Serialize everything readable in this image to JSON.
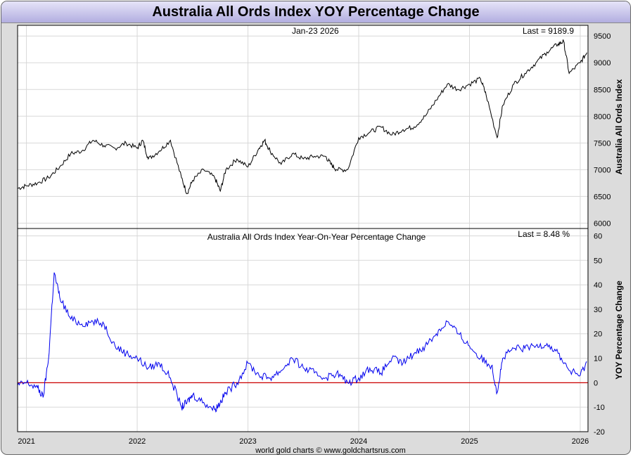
{
  "title": "Australia All Ords Index YOY Percentage Change",
  "footer": "world gold charts © www.goldchartsrus.com",
  "colors": {
    "top_series": "#000000",
    "bottom_series": "#0000ee",
    "zero_line": "#cc0000",
    "grid": "#d8d8d8"
  },
  "chart_data": [
    {
      "type": "line",
      "date_label": "Jan-23  2026",
      "last_label": "Last = 9189.9",
      "ylabel": "Australia All Ords Index",
      "ylim": [
        5900,
        9700
      ],
      "yticks": [
        6000,
        6500,
        7000,
        7500,
        8000,
        8500,
        9000,
        9500
      ],
      "xlim": [
        2020.92,
        2026.07
      ],
      "xticks": [
        "2021",
        "2022",
        "2023",
        "2024",
        "2025",
        "2026"
      ],
      "grid": true,
      "series": [
        {
          "x": [
            2020.92,
            2021.0,
            2021.1,
            2021.2,
            2021.3,
            2021.4,
            2021.5,
            2021.6,
            2021.7,
            2021.8,
            2021.9,
            2022.0,
            2022.05,
            2022.1,
            2022.2,
            2022.3,
            2022.4,
            2022.45,
            2022.5,
            2022.6,
            2022.7,
            2022.75,
            2022.8,
            2022.9,
            2023.0,
            2023.1,
            2023.15,
            2023.2,
            2023.3,
            2023.4,
            2023.5,
            2023.6,
            2023.7,
            2023.75,
            2023.8,
            2023.9,
            2024.0,
            2024.1,
            2024.2,
            2024.3,
            2024.4,
            2024.5,
            2024.6,
            2024.7,
            2024.8,
            2024.9,
            2025.0,
            2025.1,
            2025.15,
            2025.25,
            2025.3,
            2025.4,
            2025.5,
            2025.6,
            2025.7,
            2025.8,
            2025.85,
            2025.9,
            2026.0,
            2026.06
          ],
          "y": [
            6650,
            6700,
            6750,
            6850,
            7050,
            7300,
            7350,
            7550,
            7450,
            7400,
            7500,
            7400,
            7550,
            7200,
            7350,
            7550,
            6850,
            6550,
            6800,
            7000,
            6850,
            6600,
            7000,
            7200,
            7050,
            7400,
            7550,
            7350,
            7100,
            7300,
            7200,
            7250,
            7250,
            7100,
            7000,
            7000,
            7600,
            7700,
            7800,
            7650,
            7750,
            7800,
            8000,
            8300,
            8600,
            8500,
            8600,
            8700,
            8400,
            7600,
            8200,
            8600,
            8800,
            9000,
            9200,
            9350,
            9400,
            8800,
            9000,
            9190
          ]
        }
      ]
    },
    {
      "type": "line",
      "title": "Australia All Ords Index Year-On-Year Percentage Change",
      "last_label": "Last = 8.48 %",
      "ylabel": "YOY Percentage Change",
      "ylim": [
        -20,
        63
      ],
      "yticks": [
        -20,
        -10,
        0,
        10,
        20,
        30,
        40,
        50,
        60
      ],
      "xlim": [
        2020.92,
        2026.07
      ],
      "xticks": [
        "2021",
        "2022",
        "2023",
        "2024",
        "2025",
        "2026"
      ],
      "grid": true,
      "series": [
        {
          "x": [
            2020.92,
            2021.0,
            2021.1,
            2021.15,
            2021.2,
            2021.25,
            2021.3,
            2021.4,
            2021.5,
            2021.6,
            2021.7,
            2021.8,
            2021.9,
            2022.0,
            2022.1,
            2022.2,
            2022.3,
            2022.4,
            2022.45,
            2022.5,
            2022.6,
            2022.7,
            2022.75,
            2022.8,
            2022.9,
            2023.0,
            2023.1,
            2023.2,
            2023.3,
            2023.4,
            2023.5,
            2023.6,
            2023.7,
            2023.8,
            2023.9,
            2024.0,
            2024.1,
            2024.2,
            2024.3,
            2024.4,
            2024.5,
            2024.6,
            2024.7,
            2024.8,
            2024.9,
            2025.0,
            2025.1,
            2025.2,
            2025.25,
            2025.3,
            2025.4,
            2025.5,
            2025.6,
            2025.7,
            2025.8,
            2025.9,
            2026.0,
            2026.06
          ],
          "y": [
            -1,
            0,
            -2,
            -6,
            10,
            45,
            35,
            26,
            24,
            25,
            24,
            15,
            12,
            10,
            6,
            8,
            2,
            -10,
            -8,
            -5,
            -8,
            -11,
            -8,
            -4,
            0,
            8,
            3,
            2,
            5,
            10,
            6,
            4,
            2,
            4,
            0,
            2,
            6,
            4,
            10,
            8,
            12,
            15,
            20,
            25,
            20,
            15,
            10,
            7,
            -4,
            10,
            14,
            14,
            15,
            16,
            12,
            5,
            3,
            8.5
          ]
        }
      ]
    }
  ]
}
